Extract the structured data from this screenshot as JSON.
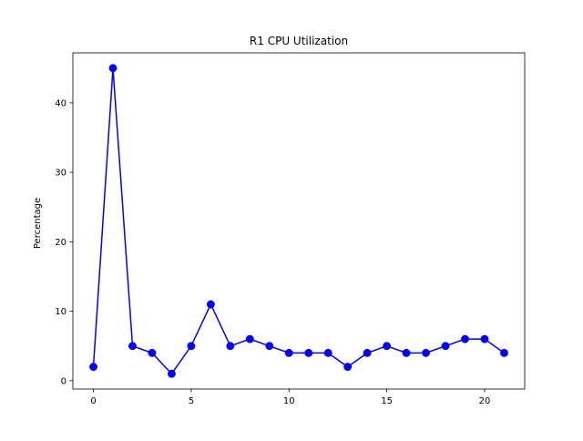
{
  "chart_data": {
    "type": "line",
    "title": "R1 CPU Utilization",
    "xlabel": "",
    "ylabel": "Percentage",
    "x": [
      0,
      1,
      2,
      3,
      4,
      5,
      6,
      7,
      8,
      9,
      10,
      11,
      12,
      13,
      14,
      15,
      16,
      17,
      18,
      19,
      20,
      21
    ],
    "series": [
      {
        "values": [
          2,
          45,
          5,
          4,
          1,
          5,
          11,
          5,
          6,
          5,
          4,
          4,
          4,
          2,
          4,
          5,
          4,
          4,
          5,
          6,
          6,
          4
        ],
        "color": "#0000ff",
        "marker": "circle"
      }
    ],
    "xlim": [
      -1.05,
      22.05
    ],
    "ylim": [
      -1.2,
      47.2
    ],
    "xticks": [
      0,
      5,
      10,
      15,
      20
    ],
    "yticks": [
      0,
      10,
      20,
      30,
      40
    ],
    "grid": false,
    "legend": "none"
  }
}
